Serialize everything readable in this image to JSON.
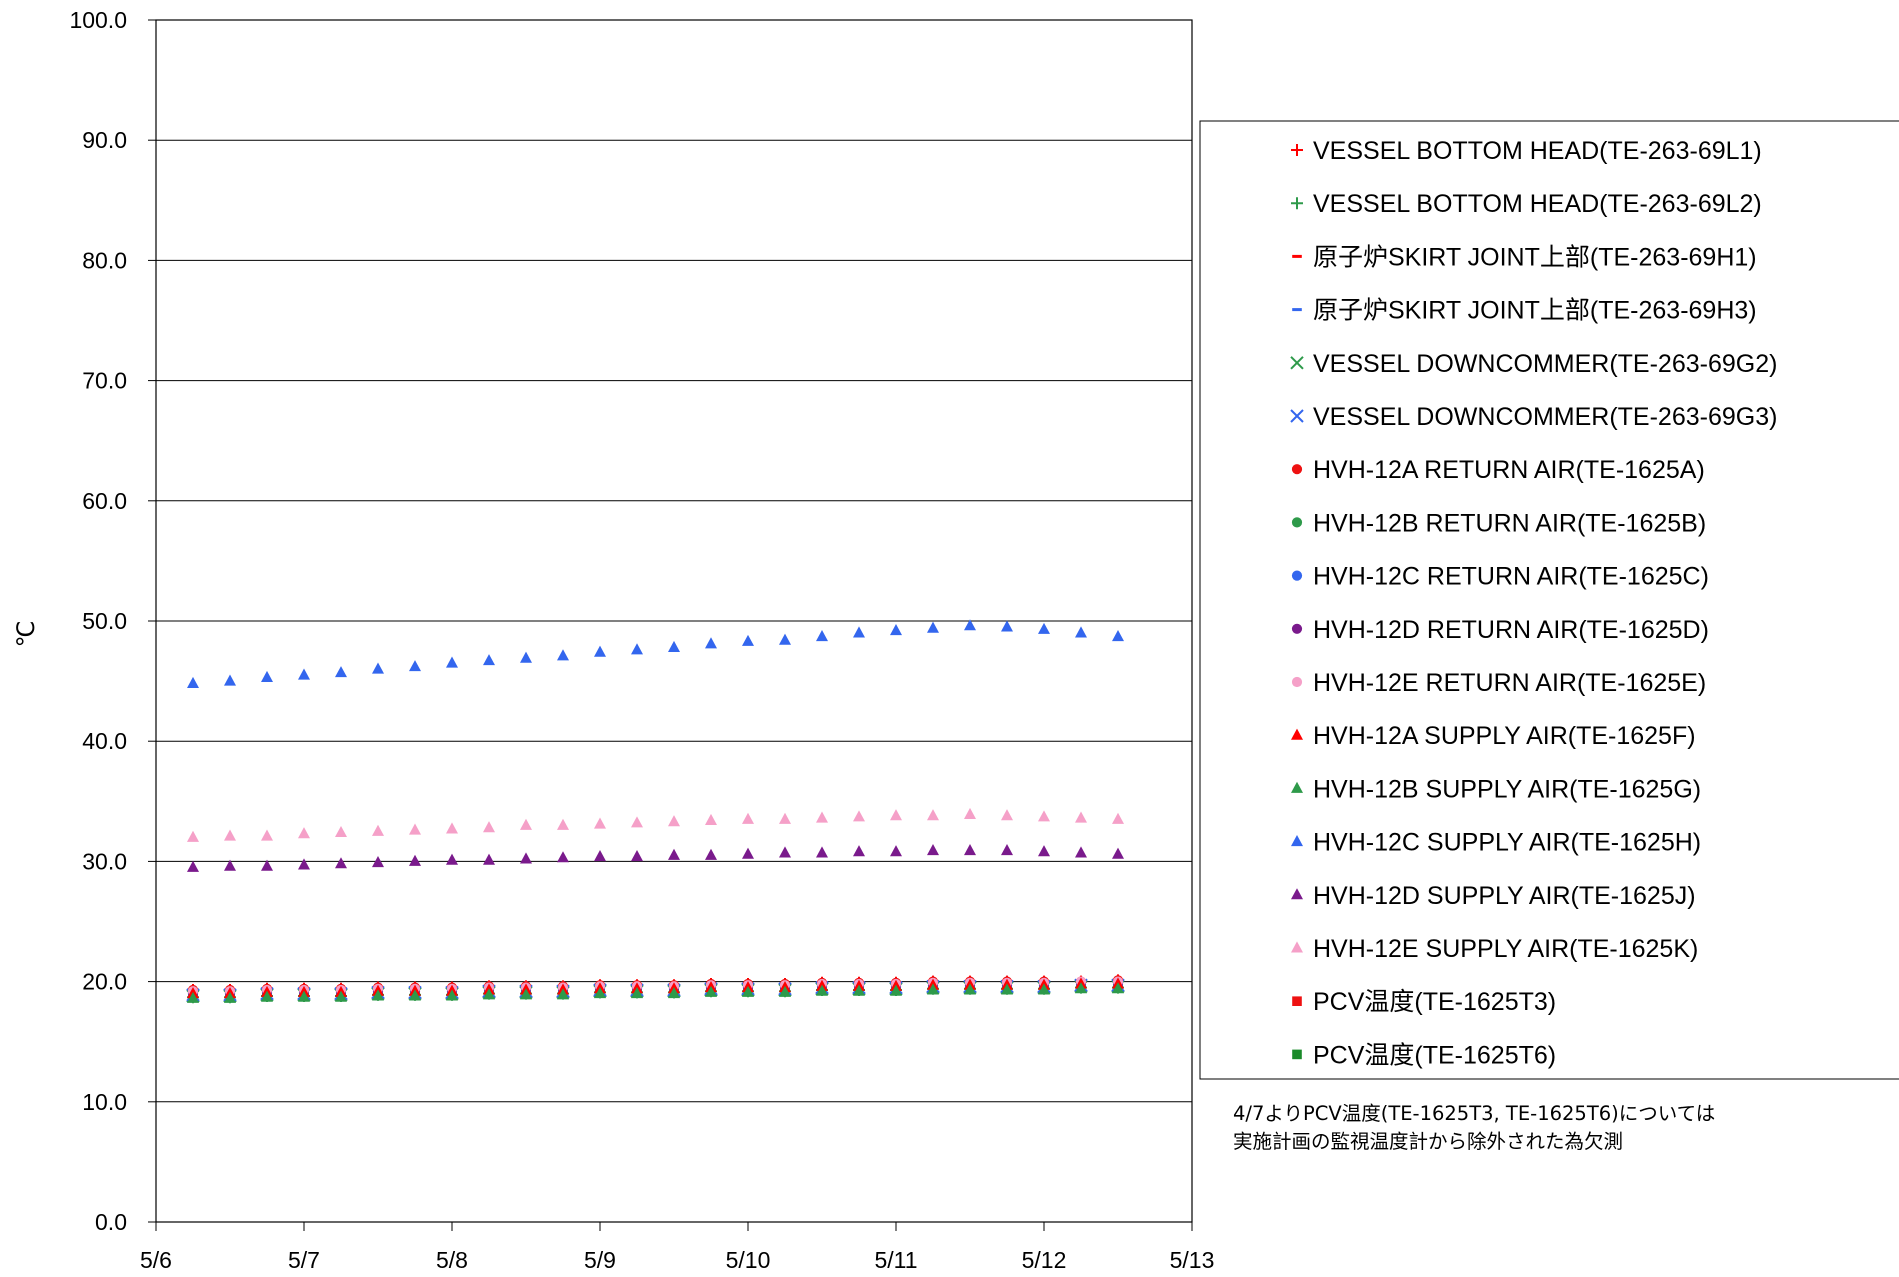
{
  "chart_data": {
    "type": "scatter",
    "title": "",
    "xlabel": "",
    "ylabel": "℃",
    "ylim": [
      0,
      100
    ],
    "yticks": [
      "0.0",
      "10.0",
      "20.0",
      "30.0",
      "40.0",
      "50.0",
      "60.0",
      "70.0",
      "80.0",
      "90.0",
      "100.0"
    ],
    "xlim": [
      "5/6",
      "5/13"
    ],
    "xticks": [
      "5/6",
      "5/7",
      "5/8",
      "5/9",
      "5/10",
      "5/11",
      "5/12",
      "5/13"
    ],
    "grid": "horizontal",
    "legend_position": "right",
    "sample_interval_hours": 6,
    "x": [
      "5/6 06:00",
      "5/6 12:00",
      "5/6 18:00",
      "5/7 00:00",
      "5/7 06:00",
      "5/7 12:00",
      "5/7 18:00",
      "5/8 00:00",
      "5/8 06:00",
      "5/8 12:00",
      "5/8 18:00",
      "5/9 00:00",
      "5/9 06:00",
      "5/9 12:00",
      "5/9 18:00",
      "5/10 00:00",
      "5/10 06:00",
      "5/10 12:00",
      "5/10 18:00",
      "5/11 00:00",
      "5/11 06:00",
      "5/11 12:00",
      "5/11 18:00",
      "5/12 00:00",
      "5/12 06:00",
      "5/12 12:00"
    ],
    "series": [
      {
        "name": "VESSEL BOTTOM HEAD(TE-263-69L1)",
        "marker": "plus",
        "color": "#ff0000",
        "values": [
          19.3,
          19.3,
          19.4,
          19.4,
          19.4,
          19.5,
          19.5,
          19.5,
          19.6,
          19.6,
          19.6,
          19.7,
          19.7,
          19.7,
          19.8,
          19.8,
          19.8,
          19.9,
          19.9,
          19.9,
          20.0,
          20.0,
          20.0,
          20.0,
          20.0,
          20.1
        ]
      },
      {
        "name": "VESSEL BOTTOM HEAD(TE-263-69L2)",
        "marker": "plus",
        "color": "#2e9a4a",
        "values": [
          18.7,
          18.7,
          18.8,
          18.8,
          18.8,
          18.9,
          18.9,
          18.9,
          19.0,
          19.0,
          19.0,
          19.1,
          19.1,
          19.1,
          19.2,
          19.2,
          19.2,
          19.3,
          19.3,
          19.3,
          19.4,
          19.4,
          19.4,
          19.4,
          19.5,
          19.5
        ]
      },
      {
        "name": "原子炉SKIRT JOINT上部(TE-263-69H1)",
        "marker": "dash",
        "color": "#ff0000",
        "values": [
          19.2,
          19.2,
          19.3,
          19.3,
          19.3,
          19.4,
          19.4,
          19.4,
          19.5,
          19.5,
          19.5,
          19.6,
          19.6,
          19.6,
          19.7,
          19.7,
          19.7,
          19.8,
          19.8,
          19.8,
          19.9,
          19.9,
          19.9,
          19.9,
          20.0,
          20.0
        ]
      },
      {
        "name": "原子炉SKIRT JOINT上部(TE-263-69H3)",
        "marker": "dash",
        "color": "#3366ee",
        "values": [
          18.9,
          18.9,
          19.0,
          19.0,
          19.0,
          19.1,
          19.1,
          19.1,
          19.2,
          19.2,
          19.2,
          19.3,
          19.3,
          19.3,
          19.4,
          19.4,
          19.4,
          19.5,
          19.5,
          19.5,
          19.6,
          19.6,
          19.6,
          19.6,
          19.7,
          19.7
        ]
      },
      {
        "name": "VESSEL DOWNCOMMER(TE-263-69G2)",
        "marker": "x",
        "color": "#2e9a4a",
        "values": [
          18.8,
          18.8,
          18.9,
          18.9,
          18.9,
          19.0,
          19.0,
          19.0,
          19.1,
          19.1,
          19.1,
          19.2,
          19.2,
          19.2,
          19.3,
          19.3,
          19.3,
          19.4,
          19.4,
          19.4,
          19.5,
          19.5,
          19.5,
          19.5,
          19.6,
          19.6
        ]
      },
      {
        "name": "VESSEL DOWNCOMMER(TE-263-69G3)",
        "marker": "x",
        "color": "#3366ee",
        "values": [
          18.9,
          18.9,
          19.0,
          19.0,
          19.0,
          19.1,
          19.1,
          19.1,
          19.2,
          19.2,
          19.2,
          19.3,
          19.3,
          19.3,
          19.4,
          19.4,
          19.4,
          19.5,
          19.5,
          19.5,
          19.6,
          19.6,
          19.6,
          19.6,
          19.7,
          19.7
        ]
      },
      {
        "name": "HVH-12A RETURN AIR(TE-1625A)",
        "marker": "circle",
        "color": "#ee1111",
        "values": [
          19.3,
          19.3,
          19.4,
          19.4,
          19.4,
          19.5,
          19.5,
          19.5,
          19.6,
          19.6,
          19.6,
          19.7,
          19.7,
          19.7,
          19.8,
          19.8,
          19.8,
          19.9,
          19.9,
          19.9,
          20.0,
          20.0,
          20.0,
          20.0,
          20.0,
          20.1
        ]
      },
      {
        "name": "HVH-12B RETURN AIR(TE-1625B)",
        "marker": "circle",
        "color": "#2e9a4a",
        "values": [
          18.8,
          18.8,
          18.9,
          18.9,
          18.9,
          19.0,
          19.0,
          19.0,
          19.1,
          19.1,
          19.1,
          19.2,
          19.2,
          19.2,
          19.3,
          19.3,
          19.3,
          19.4,
          19.4,
          19.4,
          19.5,
          19.5,
          19.5,
          19.5,
          19.6,
          19.6
        ]
      },
      {
        "name": "HVH-12C RETURN AIR(TE-1625C)",
        "marker": "circle",
        "color": "#3366ee",
        "values": [
          19.0,
          19.0,
          19.1,
          19.1,
          19.1,
          19.2,
          19.2,
          19.2,
          19.3,
          19.3,
          19.3,
          19.4,
          19.4,
          19.4,
          19.5,
          19.5,
          19.5,
          19.6,
          19.6,
          19.6,
          19.7,
          19.7,
          19.7,
          19.7,
          19.8,
          19.8
        ]
      },
      {
        "name": "HVH-12D RETURN AIR(TE-1625D)",
        "marker": "circle",
        "color": "#7a1a8c",
        "values": [
          19.1,
          19.1,
          19.2,
          19.2,
          19.2,
          19.3,
          19.3,
          19.3,
          19.4,
          19.4,
          19.4,
          19.5,
          19.5,
          19.5,
          19.6,
          19.6,
          19.6,
          19.7,
          19.7,
          19.7,
          19.8,
          19.8,
          19.8,
          19.8,
          19.9,
          19.9
        ]
      },
      {
        "name": "HVH-12E RETURN AIR(TE-1625E)",
        "marker": "circle",
        "color": "#f5a0c8",
        "values": [
          19.2,
          19.2,
          19.3,
          19.3,
          19.3,
          19.4,
          19.4,
          19.4,
          19.5,
          19.5,
          19.5,
          19.6,
          19.6,
          19.6,
          19.7,
          19.7,
          19.7,
          19.8,
          19.8,
          19.8,
          19.9,
          19.9,
          19.9,
          19.9,
          20.0,
          20.0
        ]
      },
      {
        "name": "HVH-12A SUPPLY AIR(TE-1625F)",
        "marker": "triangle",
        "color": "#ff0000",
        "values": [
          19.0,
          19.0,
          19.1,
          19.1,
          19.1,
          19.2,
          19.2,
          19.2,
          19.3,
          19.3,
          19.3,
          19.4,
          19.4,
          19.4,
          19.5,
          19.5,
          19.5,
          19.6,
          19.6,
          19.6,
          19.7,
          19.7,
          19.7,
          19.7,
          19.8,
          19.8
        ]
      },
      {
        "name": "HVH-12B SUPPLY AIR(TE-1625G)",
        "marker": "triangle",
        "color": "#2e9a4a",
        "values": [
          18.6,
          18.6,
          18.7,
          18.7,
          18.7,
          18.8,
          18.8,
          18.8,
          18.9,
          18.9,
          18.9,
          19.0,
          19.0,
          19.0,
          19.1,
          19.1,
          19.1,
          19.2,
          19.2,
          19.2,
          19.3,
          19.3,
          19.3,
          19.3,
          19.4,
          19.4
        ]
      },
      {
        "name": "HVH-12C SUPPLY AIR(TE-1625H)",
        "marker": "triangle",
        "color": "#3366ee",
        "values": [
          44.8,
          45.0,
          45.3,
          45.5,
          45.7,
          46.0,
          46.2,
          46.5,
          46.7,
          46.9,
          47.1,
          47.4,
          47.6,
          47.8,
          48.1,
          48.3,
          48.4,
          48.7,
          49.0,
          49.2,
          49.4,
          49.6,
          49.5,
          49.3,
          49.0,
          48.7
        ]
      },
      {
        "name": "HVH-12D SUPPLY AIR(TE-1625J)",
        "marker": "triangle",
        "color": "#7a1a8c",
        "values": [
          29.5,
          29.6,
          29.6,
          29.7,
          29.8,
          29.9,
          30.0,
          30.1,
          30.1,
          30.2,
          30.3,
          30.4,
          30.4,
          30.5,
          30.5,
          30.6,
          30.7,
          30.7,
          30.8,
          30.8,
          30.9,
          30.9,
          30.9,
          30.8,
          30.7,
          30.6
        ]
      },
      {
        "name": "HVH-12E SUPPLY AIR(TE-1625K)",
        "marker": "triangle",
        "color": "#f5a0c8",
        "values": [
          32.0,
          32.1,
          32.1,
          32.3,
          32.4,
          32.5,
          32.6,
          32.7,
          32.8,
          33.0,
          33.0,
          33.1,
          33.2,
          33.3,
          33.4,
          33.5,
          33.5,
          33.6,
          33.7,
          33.8,
          33.8,
          33.9,
          33.8,
          33.7,
          33.6,
          33.5
        ]
      },
      {
        "name": "PCV温度(TE-1625T3)",
        "marker": "square",
        "color": "#ee1111",
        "values": []
      },
      {
        "name": "PCV温度(TE-1625T6)",
        "marker": "square",
        "color": "#1a8a2a",
        "values": []
      }
    ]
  },
  "note": {
    "line1": "4/7よりPCV温度(TE-1625T3, TE-1625T6)については",
    "line2": "実施計画の監視温度計から除外された為欠測"
  }
}
